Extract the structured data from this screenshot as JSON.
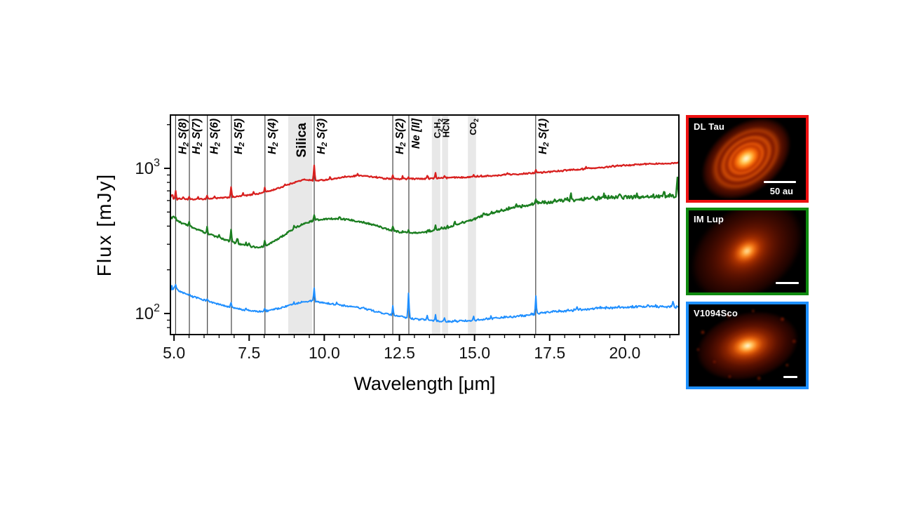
{
  "figure": {
    "background": "#ffffff"
  },
  "chart_data": {
    "type": "line",
    "title": "",
    "xlabel": "Wavelength [μm]",
    "ylabel": "Flux [mJy]",
    "xscale": "linear",
    "yscale": "log",
    "xlim": [
      4.88,
      21.8
    ],
    "ylim": [
      71.6,
      2330
    ],
    "grid": false,
    "legend": "none",
    "x_major_ticks": [
      5.0,
      7.5,
      10.0,
      12.5,
      15.0,
      17.5,
      20.0
    ],
    "x_tick_labels": [
      "5.0",
      "7.5",
      "10.0",
      "12.5",
      "15.0",
      "17.5",
      "20.0"
    ],
    "x_minor_step": 0.5,
    "y_major_ticks": [
      100,
      1000
    ],
    "y_tick_labels": [
      {
        "base": "10",
        "exp": "2",
        "value": 100
      },
      {
        "base": "10",
        "exp": "3",
        "value": 1000
      }
    ],
    "band_color": "#d8d8d8",
    "line_marker_color": "#444444",
    "features": [
      {
        "type": "line",
        "lambda": 5.053,
        "label": "H_2 S(8)",
        "style": "h2"
      },
      {
        "type": "line",
        "lambda": 5.511,
        "label": "H_2 S(7)",
        "style": "h2"
      },
      {
        "type": "line",
        "lambda": 6.109,
        "label": "H_2 S(6)",
        "style": "h2"
      },
      {
        "type": "line",
        "lambda": 6.909,
        "label": "H_2 S(5)",
        "style": "h2"
      },
      {
        "type": "line",
        "lambda": 8.026,
        "label": "H_2 S(4)",
        "style": "h2"
      },
      {
        "type": "band",
        "range": [
          8.8,
          9.6
        ],
        "label": "Silica",
        "style": "silica"
      },
      {
        "type": "line",
        "lambda": 9.665,
        "label": "H_2 S(3)",
        "style": "h2"
      },
      {
        "type": "line",
        "lambda": 12.279,
        "label": "H_2 S(2)",
        "style": "h2"
      },
      {
        "type": "line",
        "lambda": 12.814,
        "label": "Ne [II]",
        "style": "h2"
      },
      {
        "type": "band",
        "range": [
          13.58,
          13.86
        ],
        "label": "C_2H_2",
        "style": "mol"
      },
      {
        "type": "band",
        "range": [
          13.92,
          14.12
        ],
        "label": "HCN",
        "style": "mol"
      },
      {
        "type": "band",
        "range": [
          14.78,
          15.05
        ],
        "label": "CO_2",
        "style": "mol"
      },
      {
        "type": "line",
        "lambda": 17.035,
        "label": "H_2 S(1)",
        "style": "h2"
      }
    ],
    "series": [
      {
        "name": "DL Tau",
        "color": "#d8201f",
        "noise": 0.009,
        "points": [
          [
            4.88,
            645
          ],
          [
            5.1,
            620
          ],
          [
            5.4,
            610
          ],
          [
            5.8,
            612
          ],
          [
            6.2,
            618
          ],
          [
            6.6,
            626
          ],
          [
            7.0,
            636
          ],
          [
            7.4,
            650
          ],
          [
            7.8,
            668
          ],
          [
            8.2,
            700
          ],
          [
            8.6,
            745
          ],
          [
            9.0,
            800
          ],
          [
            9.35,
            838
          ],
          [
            9.7,
            822
          ],
          [
            10.0,
            832
          ],
          [
            10.4,
            852
          ],
          [
            10.8,
            872
          ],
          [
            11.2,
            888
          ],
          [
            11.6,
            872
          ],
          [
            12.0,
            850
          ],
          [
            12.4,
            840
          ],
          [
            12.8,
            842
          ],
          [
            13.2,
            846
          ],
          [
            13.6,
            850
          ],
          [
            14.0,
            856
          ],
          [
            14.4,
            862
          ],
          [
            14.9,
            872
          ],
          [
            15.4,
            884
          ],
          [
            15.9,
            896
          ],
          [
            16.4,
            910
          ],
          [
            16.9,
            924
          ],
          [
            17.4,
            940
          ],
          [
            17.9,
            958
          ],
          [
            18.4,
            976
          ],
          [
            18.9,
            995
          ],
          [
            19.4,
            1015
          ],
          [
            19.9,
            1040
          ],
          [
            20.4,
            1058
          ],
          [
            20.9,
            1070
          ],
          [
            21.3,
            1078
          ],
          [
            21.8,
            1085
          ]
        ],
        "spikes": [
          [
            5.05,
            1.1
          ],
          [
            5.3,
            1.04
          ],
          [
            5.51,
            1.05
          ],
          [
            5.8,
            1.04
          ],
          [
            6.11,
            1.06
          ],
          [
            6.35,
            1.04
          ],
          [
            6.91,
            1.17
          ],
          [
            7.3,
            1.04
          ],
          [
            7.65,
            1.05
          ],
          [
            8.03,
            1.07
          ],
          [
            8.7,
            1.03
          ],
          [
            9.66,
            1.27
          ],
          [
            10.2,
            1.03
          ],
          [
            11.1,
            1.035
          ],
          [
            12.28,
            1.07
          ],
          [
            12.6,
            1.04
          ],
          [
            12.81,
            1.03
          ],
          [
            13.42,
            1.05
          ],
          [
            13.7,
            1.08
          ],
          [
            14.0,
            1.03
          ],
          [
            14.98,
            1.03
          ],
          [
            16.1,
            1.03
          ],
          [
            17.03,
            1.05
          ],
          [
            18.7,
            1.035
          ],
          [
            19.6,
            1.03
          ]
        ]
      },
      {
        "name": "IM Lup",
        "color": "#1b7e20",
        "noise": 0.013,
        "points": [
          [
            4.88,
            460
          ],
          [
            5.2,
            425
          ],
          [
            5.6,
            393
          ],
          [
            6.0,
            363
          ],
          [
            6.4,
            338
          ],
          [
            6.8,
            317
          ],
          [
            7.2,
            300
          ],
          [
            7.55,
            290
          ],
          [
            7.8,
            285
          ],
          [
            8.1,
            295
          ],
          [
            8.5,
            330
          ],
          [
            8.9,
            375
          ],
          [
            9.3,
            415
          ],
          [
            9.7,
            440
          ],
          [
            10.1,
            450
          ],
          [
            10.5,
            448
          ],
          [
            10.9,
            440
          ],
          [
            11.3,
            425
          ],
          [
            11.7,
            405
          ],
          [
            12.1,
            380
          ],
          [
            12.5,
            363
          ],
          [
            12.9,
            356
          ],
          [
            13.3,
            360
          ],
          [
            13.7,
            372
          ],
          [
            14.1,
            390
          ],
          [
            14.5,
            412
          ],
          [
            14.9,
            438
          ],
          [
            15.3,
            465
          ],
          [
            15.7,
            492
          ],
          [
            16.1,
            518
          ],
          [
            16.5,
            540
          ],
          [
            16.9,
            558
          ],
          [
            17.3,
            572
          ],
          [
            17.7,
            584
          ],
          [
            18.1,
            594
          ],
          [
            18.6,
            604
          ],
          [
            19.1,
            612
          ],
          [
            19.6,
            618
          ],
          [
            20.1,
            622
          ],
          [
            20.6,
            625
          ],
          [
            21.2,
            628
          ],
          [
            21.8,
            632
          ]
        ],
        "spikes": [
          [
            5.05,
            1.08
          ],
          [
            5.51,
            1.06
          ],
          [
            6.11,
            1.07
          ],
          [
            6.5,
            1.05
          ],
          [
            6.91,
            1.2
          ],
          [
            7.1,
            1.06
          ],
          [
            7.5,
            1.05
          ],
          [
            8.03,
            1.09
          ],
          [
            9.0,
            1.04
          ],
          [
            9.66,
            1.1
          ],
          [
            10.5,
            1.03
          ],
          [
            12.28,
            1.07
          ],
          [
            12.81,
            1.04
          ],
          [
            13.7,
            1.08
          ],
          [
            14.35,
            1.06
          ],
          [
            15.3,
            1.05
          ],
          [
            16.4,
            1.06
          ],
          [
            17.03,
            1.1
          ],
          [
            18.2,
            1.07
          ],
          [
            19.3,
            1.06
          ],
          [
            20.4,
            1.06
          ],
          [
            21.3,
            1.08
          ],
          [
            21.75,
            1.3
          ]
        ]
      },
      {
        "name": "V1094Sco",
        "color": "#1f8fff",
        "noise": 0.013,
        "points": [
          [
            4.88,
            152
          ],
          [
            5.2,
            141
          ],
          [
            5.6,
            131
          ],
          [
            6.0,
            124
          ],
          [
            6.4,
            117
          ],
          [
            6.8,
            111
          ],
          [
            7.2,
            107
          ],
          [
            7.6,
            104
          ],
          [
            7.9,
            103
          ],
          [
            8.2,
            105
          ],
          [
            8.6,
            110
          ],
          [
            9.0,
            116
          ],
          [
            9.3,
            121
          ],
          [
            9.6,
            122
          ],
          [
            9.9,
            119
          ],
          [
            10.3,
            116
          ],
          [
            10.7,
            113
          ],
          [
            11.1,
            110
          ],
          [
            11.5,
            106
          ],
          [
            11.9,
            101
          ],
          [
            12.3,
            97
          ],
          [
            12.7,
            94
          ],
          [
            13.1,
            91
          ],
          [
            13.5,
            89
          ],
          [
            13.9,
            88
          ],
          [
            14.3,
            88
          ],
          [
            14.7,
            89
          ],
          [
            15.1,
            90
          ],
          [
            15.6,
            92
          ],
          [
            16.1,
            94
          ],
          [
            16.6,
            96
          ],
          [
            17.1,
            99
          ],
          [
            17.6,
            102
          ],
          [
            18.1,
            104
          ],
          [
            18.6,
            106
          ],
          [
            19.1,
            108
          ],
          [
            19.6,
            109
          ],
          [
            20.1,
            110
          ],
          [
            20.6,
            111
          ],
          [
            21.2,
            111
          ],
          [
            21.8,
            110
          ]
        ],
        "spikes": [
          [
            5.05,
            1.04
          ],
          [
            5.51,
            1.03
          ],
          [
            6.11,
            1.03
          ],
          [
            6.91,
            1.09
          ],
          [
            7.4,
            1.03
          ],
          [
            8.03,
            1.05
          ],
          [
            9.0,
            1.03
          ],
          [
            9.66,
            1.22
          ],
          [
            10.4,
            1.03
          ],
          [
            11.3,
            1.03
          ],
          [
            12.28,
            1.15
          ],
          [
            12.81,
            1.5
          ],
          [
            13.42,
            1.08
          ],
          [
            13.7,
            1.1
          ],
          [
            14.0,
            1.05
          ],
          [
            14.98,
            1.04
          ],
          [
            15.55,
            1.04
          ],
          [
            16.9,
            1.03
          ],
          [
            17.03,
            1.32
          ],
          [
            18.4,
            1.04
          ],
          [
            19.8,
            1.04
          ],
          [
            21.6,
            1.1
          ]
        ]
      }
    ]
  },
  "panels": [
    {
      "name": "DL Tau",
      "border": "#ee1111",
      "scalebar_label": "50 au"
    },
    {
      "name": "IM Lup",
      "border": "#0f8a0f",
      "scalebar_label": ""
    },
    {
      "name": "V1094Sco",
      "border": "#1e90ff",
      "scalebar_label": ""
    }
  ]
}
